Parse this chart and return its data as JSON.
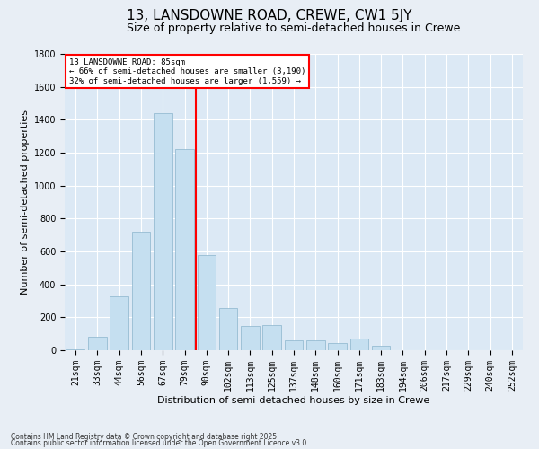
{
  "title": "13, LANSDOWNE ROAD, CREWE, CW1 5JY",
  "subtitle": "Size of property relative to semi-detached houses in Crewe",
  "xlabel": "Distribution of semi-detached houses by size in Crewe",
  "ylabel": "Number of semi-detached properties",
  "categories": [
    "21sqm",
    "33sqm",
    "44sqm",
    "56sqm",
    "67sqm",
    "79sqm",
    "90sqm",
    "102sqm",
    "113sqm",
    "125sqm",
    "137sqm",
    "148sqm",
    "160sqm",
    "171sqm",
    "183sqm",
    "194sqm",
    "206sqm",
    "217sqm",
    "229sqm",
    "240sqm",
    "252sqm"
  ],
  "values": [
    5,
    80,
    330,
    720,
    1440,
    1220,
    580,
    255,
    150,
    155,
    60,
    60,
    45,
    70,
    30,
    0,
    0,
    0,
    0,
    0,
    0
  ],
  "bar_color": "#c5dff0",
  "bar_edge_color": "#8ab4cc",
  "vline_color": "red",
  "ylim": [
    0,
    1800
  ],
  "yticks": [
    0,
    200,
    400,
    600,
    800,
    1000,
    1200,
    1400,
    1600,
    1800
  ],
  "annotation_title": "13 LANSDOWNE ROAD: 85sqm",
  "annotation_line1": "← 66% of semi-detached houses are smaller (3,190)",
  "annotation_line2": "32% of semi-detached houses are larger (1,559) →",
  "footnote1": "Contains HM Land Registry data © Crown copyright and database right 2025.",
  "footnote2": "Contains public sector information licensed under the Open Government Licence v3.0.",
  "bg_color": "#e8eef5",
  "plot_bg_color": "#dce9f5",
  "grid_color": "#ffffff",
  "title_fontsize": 11,
  "subtitle_fontsize": 9,
  "axis_label_fontsize": 8,
  "tick_fontsize": 7,
  "annot_fontsize": 6.5,
  "footnote_fontsize": 5.5
}
